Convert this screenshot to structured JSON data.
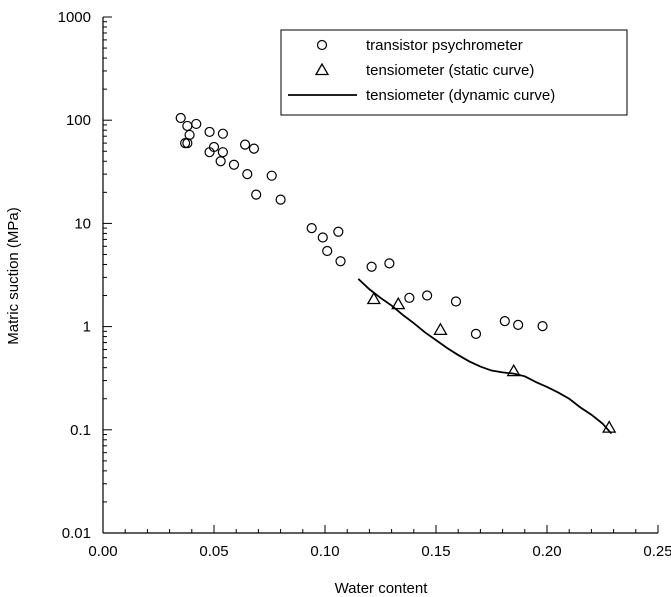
{
  "chart_data": {
    "type": "scatter",
    "xlabel": "Water content",
    "ylabel": "Matric suction (MPa)",
    "xlim": [
      0.0,
      0.25
    ],
    "ylim": [
      0.01,
      1000
    ],
    "y_scale": "log",
    "x_ticks": [
      0.0,
      0.05,
      0.1,
      0.15,
      0.2,
      0.25
    ],
    "x_tick_labels": [
      "0.00",
      "0.05",
      "0.10",
      "0.15",
      "0.20",
      "0.25"
    ],
    "y_ticks": [
      0.01,
      0.1,
      1,
      10,
      100,
      1000
    ],
    "y_tick_labels": [
      "0.01",
      "0.1",
      "1",
      "10",
      "100",
      "1000"
    ],
    "grid": false,
    "legend_position": "top-right",
    "series": [
      {
        "name": "transistor psychrometer",
        "marker": "circle",
        "points": [
          [
            0.035,
            105
          ],
          [
            0.037,
            60
          ],
          [
            0.038,
            88
          ],
          [
            0.038,
            60
          ],
          [
            0.039,
            72
          ],
          [
            0.042,
            92
          ],
          [
            0.048,
            49
          ],
          [
            0.048,
            77
          ],
          [
            0.05,
            55
          ],
          [
            0.053,
            40
          ],
          [
            0.054,
            74
          ],
          [
            0.054,
            49
          ],
          [
            0.059,
            37
          ],
          [
            0.064,
            58
          ],
          [
            0.065,
            30
          ],
          [
            0.068,
            53
          ],
          [
            0.069,
            19
          ],
          [
            0.076,
            29
          ],
          [
            0.08,
            17
          ],
          [
            0.094,
            9
          ],
          [
            0.099,
            7.3
          ],
          [
            0.101,
            5.4
          ],
          [
            0.106,
            8.3
          ],
          [
            0.107,
            4.3
          ],
          [
            0.121,
            3.8
          ],
          [
            0.129,
            4.1
          ],
          [
            0.138,
            1.9
          ],
          [
            0.146,
            2.0
          ],
          [
            0.159,
            1.75
          ],
          [
            0.168,
            0.85
          ],
          [
            0.181,
            1.13
          ],
          [
            0.187,
            1.04
          ],
          [
            0.198,
            1.01
          ]
        ]
      },
      {
        "name": "tensiometer (static curve)",
        "marker": "triangle",
        "points": [
          [
            0.122,
            1.85
          ],
          [
            0.133,
            1.65
          ],
          [
            0.152,
            0.93
          ],
          [
            0.185,
            0.37
          ],
          [
            0.228,
            0.105
          ]
        ]
      },
      {
        "name": "tensiometer (dynamic curve)",
        "marker": "line",
        "points": [
          [
            0.115,
            2.9
          ],
          [
            0.12,
            2.3
          ],
          [
            0.125,
            1.9
          ],
          [
            0.13,
            1.6
          ],
          [
            0.135,
            1.3
          ],
          [
            0.14,
            1.08
          ],
          [
            0.145,
            0.88
          ],
          [
            0.15,
            0.74
          ],
          [
            0.155,
            0.62
          ],
          [
            0.16,
            0.53
          ],
          [
            0.165,
            0.46
          ],
          [
            0.17,
            0.41
          ],
          [
            0.175,
            0.375
          ],
          [
            0.18,
            0.36
          ],
          [
            0.185,
            0.35
          ],
          [
            0.19,
            0.33
          ],
          [
            0.195,
            0.29
          ],
          [
            0.2,
            0.26
          ],
          [
            0.205,
            0.23
          ],
          [
            0.21,
            0.2
          ],
          [
            0.215,
            0.165
          ],
          [
            0.22,
            0.14
          ],
          [
            0.225,
            0.115
          ],
          [
            0.229,
            0.092
          ]
        ]
      }
    ]
  }
}
